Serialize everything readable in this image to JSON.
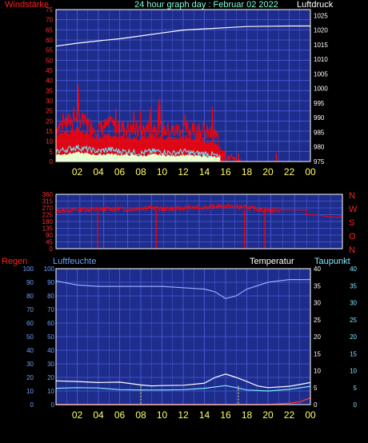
{
  "header": {
    "title": "24 hour graph day : Februar 02 2022",
    "left_label": "Windstärke",
    "right_label": "Luftdruck"
  },
  "labels": {
    "compass": [
      "N",
      "W",
      "S",
      "O",
      "N"
    ],
    "regen": "Regen",
    "luftfeuchte": "Luftfeuchte",
    "temperatur": "Temperatur",
    "taupunkt": "Taupunkt"
  },
  "colors": {
    "plot_bg": "#1e2d8c",
    "grid": "#4a5ad8",
    "wind_red": "#ff0000",
    "gust_cyan": "#6fe8ff",
    "calm_fill": "#e8ffd0",
    "pressure": "#ffffff",
    "title": "#7fffd4",
    "xtick": "#ffff66",
    "humidity": "#9aa8ff",
    "temperature": "#ffffff",
    "dewpoint": "#7fe8ff",
    "rain": "#ff3030"
  },
  "chart_data": [
    {
      "type": "line",
      "x_ticks": [
        "02",
        "04",
        "06",
        "08",
        "10",
        "12",
        "14",
        "16",
        "18",
        "20",
        "22",
        "00"
      ],
      "left_axis": {
        "ylim": [
          0,
          75
        ],
        "ticks": [
          0,
          5,
          10,
          15,
          20,
          25,
          30,
          35,
          40,
          45,
          50,
          55,
          60,
          65,
          70,
          75
        ]
      },
      "right_axis": {
        "ylim": [
          975,
          1027
        ],
        "ticks": [
          975,
          980,
          985,
          990,
          995,
          1000,
          1005,
          1010,
          1015,
          1020,
          1025
        ]
      },
      "series": [
        {
          "axis": "left",
          "x": [
            0,
            1,
            2,
            3,
            4,
            5,
            6,
            7,
            8,
            9,
            10,
            11,
            12,
            13,
            14,
            15,
            16,
            17,
            18,
            19,
            20,
            21,
            22,
            23,
            24
          ],
          "values": [
            17,
            19,
            22,
            18,
            16,
            18,
            17,
            16,
            15,
            17,
            16,
            15,
            16,
            15,
            14,
            13,
            3,
            1,
            0,
            0,
            0,
            0,
            0,
            0,
            0
          ]
        },
        {
          "axis": "left",
          "x": [
            0,
            1,
            2,
            3,
            4,
            5,
            6,
            7,
            8,
            9,
            10,
            11,
            12,
            13,
            14,
            15,
            16,
            17,
            18,
            19,
            20,
            21,
            22,
            23,
            24
          ],
          "values": [
            5,
            6,
            7,
            6,
            5,
            6,
            5,
            5,
            4,
            5,
            5,
            4,
            5,
            4,
            4,
            3,
            0,
            0,
            0,
            0,
            0,
            0,
            0,
            0,
            0
          ]
        },
        {
          "axis": "right",
          "x": [
            0,
            2,
            4,
            6,
            8,
            10,
            12,
            14,
            16,
            18,
            20,
            22,
            24
          ],
          "values": [
            1014.5,
            1015.5,
            1016.3,
            1017.0,
            1018.0,
            1019.0,
            1020.0,
            1020.4,
            1020.8,
            1021.2,
            1021.3,
            1021.4,
            1021.4
          ]
        }
      ]
    },
    {
      "type": "scatter",
      "x_ticks": [
        "02",
        "04",
        "06",
        "08",
        "10",
        "12",
        "14",
        "16",
        "18",
        "20",
        "22",
        "00"
      ],
      "ylim": [
        0,
        360
      ],
      "ticks": [
        0,
        45,
        90,
        135,
        180,
        225,
        270,
        315,
        360
      ],
      "series": [
        {
          "x": [
            0,
            1,
            2,
            3,
            4,
            5,
            6,
            7,
            8,
            9,
            10,
            11,
            12,
            13,
            14,
            15,
            16,
            17,
            18,
            19,
            20,
            21,
            22,
            23,
            24
          ],
          "values": [
            250,
            255,
            260,
            258,
            262,
            265,
            260,
            268,
            272,
            262,
            266,
            270,
            272,
            276,
            282,
            278,
            272,
            262,
            252,
            258,
            258,
            225,
            222,
            210,
            210
          ]
        }
      ]
    },
    {
      "type": "line",
      "x_ticks": [
        "02",
        "04",
        "06",
        "08",
        "10",
        "12",
        "14",
        "16",
        "18",
        "20",
        "22",
        "00"
      ],
      "left_axis": {
        "ylim": [
          0,
          100
        ],
        "ticks": [
          0,
          10,
          20,
          30,
          40,
          50,
          60,
          70,
          80,
          90,
          100
        ]
      },
      "right_axis": {
        "ylim": [
          0,
          40
        ],
        "ticks": [
          0,
          5,
          10,
          15,
          20,
          25,
          30,
          35,
          40
        ]
      },
      "series": [
        {
          "axis": "left",
          "x": [
            0,
            2,
            4,
            6,
            8,
            10,
            12,
            14,
            15,
            16,
            17,
            18,
            20,
            22,
            24
          ],
          "values": [
            91,
            88,
            87,
            87,
            87,
            87,
            86,
            85,
            83,
            78,
            80,
            85,
            90,
            92,
            92
          ]
        },
        {
          "axis": "right",
          "x": [
            0,
            2,
            4,
            6,
            8,
            9,
            10,
            12,
            14,
            15,
            16,
            17,
            18,
            19,
            20,
            22,
            24
          ],
          "values": [
            7.0,
            6.8,
            6.5,
            6.6,
            5.8,
            5.5,
            5.6,
            5.7,
            6.3,
            8.0,
            9.0,
            8.0,
            6.8,
            5.5,
            5.0,
            5.4,
            6.5
          ]
        },
        {
          "axis": "right",
          "x": [
            0,
            2,
            4,
            6,
            8,
            10,
            12,
            14,
            16,
            17,
            18,
            20,
            22,
            24
          ],
          "values": [
            4.8,
            5.0,
            4.9,
            4.4,
            4.3,
            4.3,
            4.4,
            4.8,
            5.6,
            5.0,
            4.3,
            4.0,
            4.5,
            5.4
          ]
        },
        {
          "axis": "left",
          "x": [
            0,
            20,
            21,
            22,
            23,
            24
          ],
          "values": [
            0,
            0,
            0.5,
            1,
            2,
            5
          ]
        }
      ]
    }
  ]
}
